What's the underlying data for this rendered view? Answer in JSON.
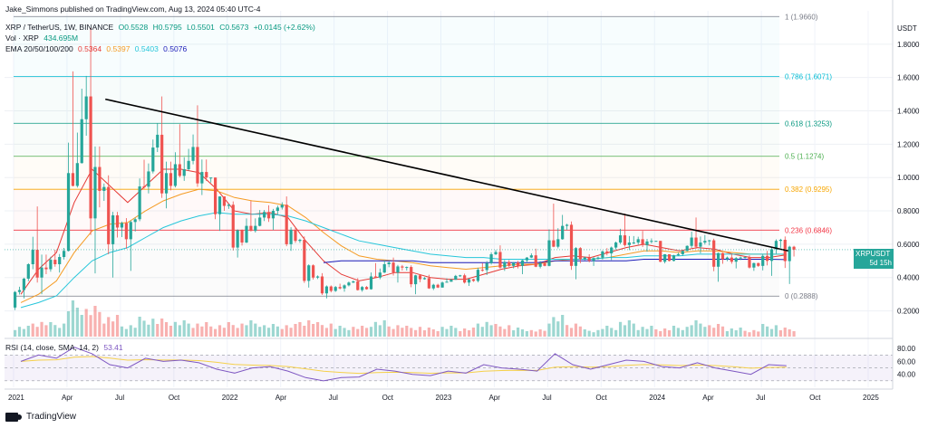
{
  "header": {
    "publisher": "Jake_Simmons published on TradingView.com, Aug 13, 2024 05:40 UTC-4",
    "symbol": "XRP / TetherUS, 1W, BINANCE",
    "ohlc": {
      "o": "O0.5528",
      "h": "H0.5795",
      "l": "L0.5501",
      "c": "C0.5673",
      "chg": "+0.0145 (+2.62%)"
    },
    "vol_label": "Vol · XRP",
    "vol_value": "434.695M",
    "ema_label": "EMA 20/50/100/200",
    "ema_values": [
      {
        "v": "0.5364",
        "color": "#e53935"
      },
      {
        "v": "0.5397",
        "color": "#f59b23"
      },
      {
        "v": "0.5403",
        "color": "#26c6da"
      },
      {
        "v": "0.5076",
        "color": "#1a1ab8"
      }
    ],
    "rsi_label": "RSI (14, close, SMA, 14, 2)",
    "rsi_value": "53.41"
  },
  "price_axis": {
    "unit": "USDT",
    "ticks": [
      "1.8000",
      "1.6000",
      "1.4000",
      "1.2000",
      "1.0000",
      "0.8000",
      "0.6000",
      "0.4000",
      "0.2000"
    ]
  },
  "rsi_axis": {
    "ticks": [
      "80.00",
      "60.00",
      "40.00"
    ]
  },
  "time_axis": {
    "ticks": [
      "2021",
      "Apr",
      "Jul",
      "Oct",
      "2022",
      "Apr",
      "Jul",
      "Oct",
      "2023",
      "Apr",
      "Jul",
      "Oct",
      "2024",
      "Apr",
      "Jul",
      "Oct",
      "2025"
    ]
  },
  "current_tag": {
    "symbol": "XRPUSDT",
    "price": "0.5673",
    "countdown": "5d 15h"
  },
  "footer": {
    "brand": "TradingView"
  },
  "colors": {
    "up": "#26a69a",
    "down": "#ef5350",
    "grid": "#e9ecf2"
  },
  "chart_data": {
    "type": "candlestick",
    "title": "XRP / TetherUS, 1W, BINANCE",
    "y_unit": "USDT",
    "ylim": [
      0,
      2.0
    ],
    "x_range": [
      "2021-01",
      "2025-01"
    ],
    "grid": true,
    "fib_levels": [
      {
        "label": "1 (1.9660)",
        "value": 1.966,
        "color": "#787b86"
      },
      {
        "label": "0.786 (1.6071)",
        "value": 1.6071,
        "color": "#00bcd4"
      },
      {
        "label": "0.618 (1.3253)",
        "value": 1.3253,
        "color": "#089981"
      },
      {
        "label": "0.5 (1.1274)",
        "value": 1.1274,
        "color": "#4caf50"
      },
      {
        "label": "0.382 (0.9295)",
        "value": 0.9295,
        "color": "#f7a600"
      },
      {
        "label": "0.236 (0.6846)",
        "value": 0.6846,
        "color": "#f23645"
      },
      {
        "label": "0 (0.2888)",
        "value": 0.2888,
        "color": "#787b86"
      }
    ],
    "trendline": {
      "from": [
        "2021-06",
        1.47
      ],
      "to": [
        "2024-08",
        0.56
      ],
      "color": "#000000"
    },
    "candles_monthly": [
      {
        "t": "2021-01",
        "o": 0.22,
        "h": 0.5,
        "l": 0.17,
        "c": 0.48
      },
      {
        "t": "2021-02",
        "o": 0.48,
        "h": 0.74,
        "l": 0.35,
        "c": 0.45
      },
      {
        "t": "2021-03",
        "o": 0.45,
        "h": 0.62,
        "l": 0.4,
        "c": 0.56
      },
      {
        "t": "2021-04",
        "o": 0.56,
        "h": 1.96,
        "l": 0.55,
        "c": 1.35
      },
      {
        "t": "2021-05",
        "o": 1.35,
        "h": 1.76,
        "l": 0.59,
        "c": 0.92
      },
      {
        "t": "2021-06",
        "o": 0.92,
        "h": 0.99,
        "l": 0.5,
        "c": 0.7
      },
      {
        "t": "2021-07",
        "o": 0.7,
        "h": 0.78,
        "l": 0.51,
        "c": 0.75
      },
      {
        "t": "2021-08",
        "o": 0.75,
        "h": 1.34,
        "l": 0.71,
        "c": 1.18
      },
      {
        "t": "2021-09",
        "o": 1.18,
        "h": 1.41,
        "l": 0.86,
        "c": 0.95
      },
      {
        "t": "2021-10",
        "o": 0.95,
        "h": 1.34,
        "l": 0.92,
        "c": 1.1
      },
      {
        "t": "2021-11",
        "o": 1.1,
        "h": 1.35,
        "l": 0.93,
        "c": 1.0
      },
      {
        "t": "2021-12",
        "o": 1.0,
        "h": 1.0,
        "l": 0.73,
        "c": 0.83
      },
      {
        "t": "2022-01",
        "o": 0.83,
        "h": 0.85,
        "l": 0.55,
        "c": 0.61
      },
      {
        "t": "2022-02",
        "o": 0.61,
        "h": 0.91,
        "l": 0.6,
        "c": 0.76
      },
      {
        "t": "2022-03",
        "o": 0.76,
        "h": 0.86,
        "l": 0.69,
        "c": 0.82
      },
      {
        "t": "2022-04",
        "o": 0.82,
        "h": 0.87,
        "l": 0.58,
        "c": 0.62
      },
      {
        "t": "2022-05",
        "o": 0.62,
        "h": 0.64,
        "l": 0.36,
        "c": 0.4
      },
      {
        "t": "2022-06",
        "o": 0.4,
        "h": 0.42,
        "l": 0.29,
        "c": 0.32
      },
      {
        "t": "2022-07",
        "o": 0.32,
        "h": 0.39,
        "l": 0.3,
        "c": 0.37
      },
      {
        "t": "2022-08",
        "o": 0.37,
        "h": 0.39,
        "l": 0.32,
        "c": 0.33
      },
      {
        "t": "2022-09",
        "o": 0.33,
        "h": 0.56,
        "l": 0.32,
        "c": 0.48
      },
      {
        "t": "2022-10",
        "o": 0.48,
        "h": 0.51,
        "l": 0.4,
        "c": 0.46
      },
      {
        "t": "2022-11",
        "o": 0.46,
        "h": 0.47,
        "l": 0.33,
        "c": 0.39
      },
      {
        "t": "2022-12",
        "o": 0.39,
        "h": 0.41,
        "l": 0.33,
        "c": 0.34
      },
      {
        "t": "2023-01",
        "o": 0.34,
        "h": 0.43,
        "l": 0.34,
        "c": 0.41
      },
      {
        "t": "2023-02",
        "o": 0.41,
        "h": 0.42,
        "l": 0.36,
        "c": 0.38
      },
      {
        "t": "2023-03",
        "o": 0.38,
        "h": 0.58,
        "l": 0.35,
        "c": 0.54
      },
      {
        "t": "2023-04",
        "o": 0.54,
        "h": 0.58,
        "l": 0.45,
        "c": 0.47
      },
      {
        "t": "2023-05",
        "o": 0.47,
        "h": 0.53,
        "l": 0.42,
        "c": 0.52
      },
      {
        "t": "2023-06",
        "o": 0.52,
        "h": 0.56,
        "l": 0.46,
        "c": 0.47
      },
      {
        "t": "2023-07",
        "o": 0.47,
        "h": 0.93,
        "l": 0.46,
        "c": 0.71
      },
      {
        "t": "2023-08",
        "o": 0.71,
        "h": 0.73,
        "l": 0.43,
        "c": 0.51
      },
      {
        "t": "2023-09",
        "o": 0.51,
        "h": 0.54,
        "l": 0.48,
        "c": 0.52
      },
      {
        "t": "2023-10",
        "o": 0.52,
        "h": 0.63,
        "l": 0.48,
        "c": 0.61
      },
      {
        "t": "2023-11",
        "o": 0.61,
        "h": 0.74,
        "l": 0.58,
        "c": 0.61
      },
      {
        "t": "2023-12",
        "o": 0.61,
        "h": 0.67,
        "l": 0.57,
        "c": 0.62
      },
      {
        "t": "2024-01",
        "o": 0.62,
        "h": 0.62,
        "l": 0.49,
        "c": 0.5
      },
      {
        "t": "2024-02",
        "o": 0.5,
        "h": 0.6,
        "l": 0.49,
        "c": 0.59
      },
      {
        "t": "2024-03",
        "o": 0.59,
        "h": 0.74,
        "l": 0.55,
        "c": 0.62
      },
      {
        "t": "2024-04",
        "o": 0.62,
        "h": 0.63,
        "l": 0.42,
        "c": 0.51
      },
      {
        "t": "2024-05",
        "o": 0.51,
        "h": 0.54,
        "l": 0.47,
        "c": 0.52
      },
      {
        "t": "2024-06",
        "o": 0.52,
        "h": 0.53,
        "l": 0.45,
        "c": 0.47
      },
      {
        "t": "2024-07",
        "o": 0.47,
        "h": 0.65,
        "l": 0.38,
        "c": 0.62
      },
      {
        "t": "2024-08",
        "o": 0.62,
        "h": 0.64,
        "l": 0.43,
        "c": 0.5673
      }
    ],
    "ema_series": [
      {
        "name": "EMA 20",
        "color": "#e53935",
        "values": [
          0.3,
          0.45,
          0.55,
          0.85,
          1.05,
          0.95,
          0.85,
          0.95,
          1.05,
          1.05,
          1.03,
          0.93,
          0.8,
          0.78,
          0.79,
          0.76,
          0.62,
          0.5,
          0.42,
          0.38,
          0.4,
          0.43,
          0.43,
          0.4,
          0.39,
          0.39,
          0.42,
          0.45,
          0.47,
          0.48,
          0.52,
          0.53,
          0.52,
          0.55,
          0.58,
          0.6,
          0.58,
          0.56,
          0.58,
          0.57,
          0.54,
          0.52,
          0.52,
          0.5364
        ]
      },
      {
        "name": "EMA 50",
        "color": "#f59b23",
        "values": [
          0.25,
          0.3,
          0.38,
          0.55,
          0.68,
          0.72,
          0.73,
          0.8,
          0.86,
          0.9,
          0.93,
          0.92,
          0.88,
          0.86,
          0.85,
          0.83,
          0.76,
          0.67,
          0.59,
          0.53,
          0.51,
          0.5,
          0.49,
          0.47,
          0.46,
          0.45,
          0.46,
          0.47,
          0.48,
          0.48,
          0.5,
          0.51,
          0.51,
          0.52,
          0.54,
          0.56,
          0.56,
          0.55,
          0.56,
          0.56,
          0.55,
          0.54,
          0.54,
          0.5397
        ]
      },
      {
        "name": "EMA 100",
        "color": "#26c6da",
        "values": [
          0.22,
          0.25,
          0.29,
          0.4,
          0.5,
          0.55,
          0.58,
          0.64,
          0.7,
          0.74,
          0.77,
          0.79,
          0.78,
          0.78,
          0.78,
          0.77,
          0.74,
          0.7,
          0.66,
          0.62,
          0.6,
          0.58,
          0.56,
          0.54,
          0.53,
          0.52,
          0.52,
          0.51,
          0.51,
          0.51,
          0.51,
          0.51,
          0.51,
          0.52,
          0.52,
          0.53,
          0.53,
          0.53,
          0.54,
          0.54,
          0.54,
          0.54,
          0.54,
          0.5403
        ]
      },
      {
        "name": "EMA 200",
        "color": "#1a1ab8",
        "values": [
          null,
          null,
          null,
          null,
          null,
          null,
          null,
          null,
          null,
          null,
          null,
          null,
          null,
          null,
          null,
          null,
          null,
          0.49,
          0.5,
          0.5,
          0.5,
          0.5,
          0.5,
          0.49,
          0.49,
          0.49,
          0.49,
          0.49,
          0.49,
          0.49,
          0.5,
          0.5,
          0.5,
          0.5,
          0.5,
          0.51,
          0.51,
          0.51,
          0.51,
          0.51,
          0.51,
          0.51,
          0.51,
          0.5076
        ]
      }
    ],
    "volume_relative": [
      0.3,
      0.45,
      0.4,
      1.0,
      0.85,
      0.6,
      0.35,
      0.55,
      0.5,
      0.45,
      0.4,
      0.35,
      0.4,
      0.45,
      0.35,
      0.35,
      0.5,
      0.4,
      0.3,
      0.3,
      0.45,
      0.35,
      0.3,
      0.25,
      0.3,
      0.25,
      0.45,
      0.35,
      0.25,
      0.2,
      0.6,
      0.4,
      0.2,
      0.3,
      0.45,
      0.3,
      0.25,
      0.3,
      0.45,
      0.35,
      0.25,
      0.2,
      0.35,
      0.25
    ],
    "rsi": {
      "ylim": [
        20,
        90
      ],
      "values": [
        60,
        70,
        65,
        82,
        72,
        55,
        50,
        65,
        60,
        62,
        58,
        48,
        42,
        50,
        52,
        45,
        35,
        30,
        35,
        36,
        48,
        45,
        40,
        38,
        45,
        42,
        55,
        50,
        48,
        45,
        72,
        55,
        48,
        55,
        62,
        60,
        52,
        50,
        58,
        50,
        45,
        40,
        55,
        53.41
      ]
    }
  }
}
